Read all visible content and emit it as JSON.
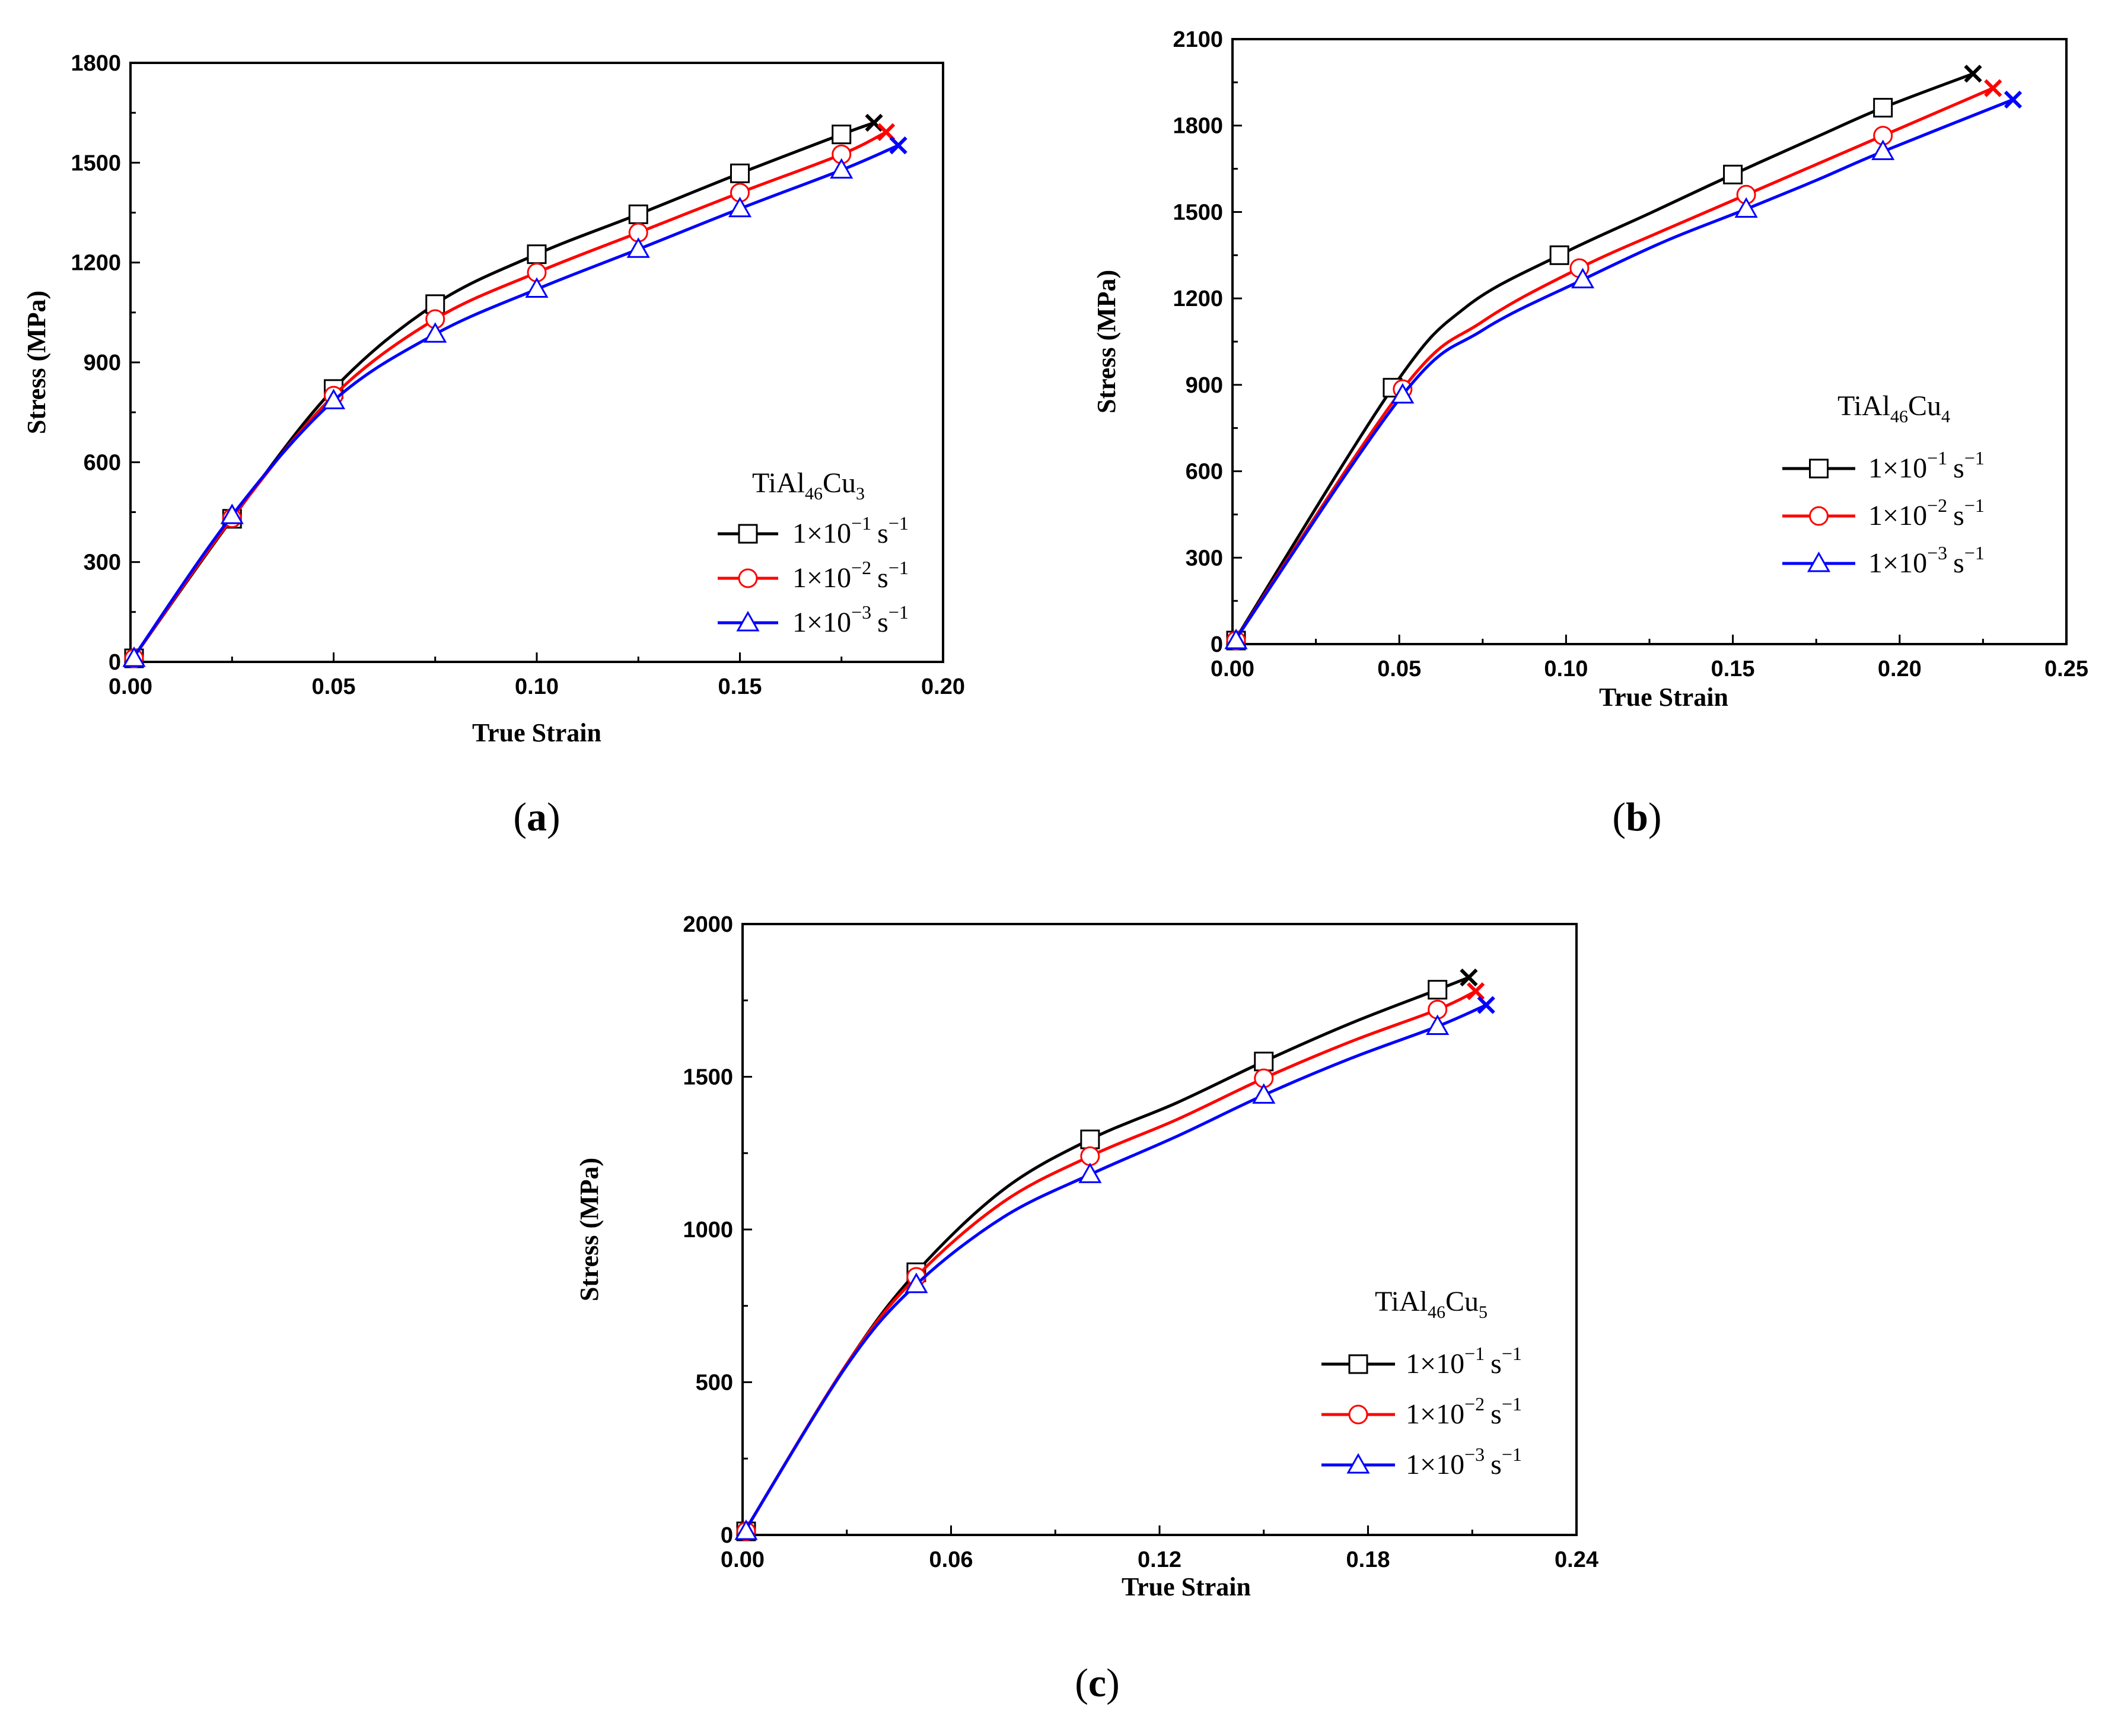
{
  "colors": {
    "s1": "#000000",
    "s2": "#ff0000",
    "s3": "#0000ff",
    "axis": "#000000"
  },
  "chart_data": [
    {
      "type": "line",
      "panel": "a",
      "caption": "a",
      "xlabel": "True Strain",
      "ylabel": "Stress (MPa)",
      "xlim": [
        0,
        0.2
      ],
      "ylim": [
        0,
        1800
      ],
      "xticks": [
        "0.00",
        "0.05",
        "0.10",
        "0.15",
        "0.20"
      ],
      "xtick_values": [
        0,
        0.05,
        0.1,
        0.15,
        0.2
      ],
      "yticks": [
        "0",
        "300",
        "600",
        "900",
        "1200",
        "1500",
        "1800"
      ],
      "ytick_values": [
        0,
        300,
        600,
        900,
        1200,
        1500,
        1800
      ],
      "legend": {
        "title_base": "TiAl",
        "title_sub1": "46",
        "title_mid": "Cu",
        "title_sub2": "3",
        "prefix": "1×10",
        "exps": [
          "−1",
          "−2",
          "−3"
        ],
        "unit": "s",
        "unit_exp": "−1"
      },
      "series": [
        {
          "name": "1×10−1 s−1",
          "color": "#000000",
          "marker": "square",
          "x": [
            0,
            0.025,
            0.05,
            0.075,
            0.1,
            0.125,
            0.15,
            0.175,
            0.183
          ],
          "y": [
            0,
            430,
            820,
            1075,
            1225,
            1345,
            1468,
            1585,
            1620
          ],
          "markers_x": [
            0.025,
            0.05,
            0.075,
            0.1,
            0.125,
            0.15,
            0.175
          ],
          "markers_y": [
            430,
            820,
            1075,
            1225,
            1345,
            1468,
            1585
          ],
          "fracture": [
            0.183,
            1620
          ]
        },
        {
          "name": "1×10−2 s−1",
          "color": "#ff0000",
          "marker": "circle",
          "x": [
            0,
            0.025,
            0.05,
            0.075,
            0.1,
            0.125,
            0.15,
            0.175,
            0.186
          ],
          "y": [
            0,
            432,
            800,
            1030,
            1170,
            1290,
            1410,
            1525,
            1592
          ],
          "markers_x": [
            0.025,
            0.05,
            0.075,
            0.1,
            0.125,
            0.15,
            0.175
          ],
          "markers_y": [
            432,
            800,
            1030,
            1170,
            1290,
            1410,
            1525
          ],
          "fracture": [
            0.186,
            1592
          ]
        },
        {
          "name": "1×10−3 s−1",
          "color": "#0000ff",
          "marker": "triangle",
          "x": [
            0,
            0.025,
            0.05,
            0.075,
            0.1,
            0.125,
            0.15,
            0.175,
            0.189
          ],
          "y": [
            0,
            440,
            785,
            985,
            1120,
            1240,
            1362,
            1478,
            1552
          ],
          "markers_x": [
            0.025,
            0.05,
            0.075,
            0.1,
            0.125,
            0.15,
            0.175
          ],
          "markers_y": [
            440,
            785,
            985,
            1120,
            1240,
            1362,
            1478
          ],
          "fracture": [
            0.189,
            1552
          ]
        }
      ]
    },
    {
      "type": "line",
      "panel": "b",
      "caption": "b",
      "xlabel": "True Strain",
      "ylabel": "Stress (MPa)",
      "xlim": [
        0,
        0.25
      ],
      "ylim": [
        0,
        2100
      ],
      "xticks": [
        "0.00",
        "0.05",
        "0.10",
        "0.15",
        "0.20",
        "0.25"
      ],
      "xtick_values": [
        0,
        0.05,
        0.1,
        0.15,
        0.2,
        0.25
      ],
      "yticks": [
        "0",
        "300",
        "600",
        "900",
        "1200",
        "1500",
        "1800",
        "2100"
      ],
      "ytick_values": [
        0,
        300,
        600,
        900,
        1200,
        1500,
        1800,
        2100
      ],
      "legend": {
        "title_base": "TiAl",
        "title_sub1": "46",
        "title_mid": "Cu",
        "title_sub2": "4",
        "prefix": "1×10",
        "exps": [
          "−1",
          "−2",
          "−3"
        ],
        "unit": "s",
        "unit_exp": "−1"
      },
      "series": [
        {
          "name": "1×10−1 s−1",
          "color": "#000000",
          "marker": "square",
          "x": [
            0,
            0.048,
            0.07,
            0.098,
            0.125,
            0.15,
            0.175,
            0.195,
            0.222
          ],
          "y": [
            0,
            890,
            1170,
            1350,
            1495,
            1630,
            1760,
            1862,
            1980
          ],
          "markers_x": [
            0.048,
            0.098,
            0.15,
            0.195
          ],
          "markers_y": [
            890,
            1350,
            1630,
            1862
          ],
          "fracture": [
            0.222,
            1980
          ]
        },
        {
          "name": "1×10−2 s−1",
          "color": "#ff0000",
          "marker": "circle",
          "x": [
            0,
            0.051,
            0.075,
            0.104,
            0.13,
            0.154,
            0.175,
            0.195,
            0.228
          ],
          "y": [
            0,
            885,
            1120,
            1305,
            1440,
            1560,
            1665,
            1765,
            1930
          ],
          "markers_x": [
            0.051,
            0.104,
            0.154,
            0.195
          ],
          "markers_y": [
            885,
            1305,
            1560,
            1765
          ],
          "fracture": [
            0.228,
            1930
          ]
        },
        {
          "name": "1×10−3 s−1",
          "color": "#0000ff",
          "marker": "triangle",
          "x": [
            0,
            0.051,
            0.075,
            0.105,
            0.13,
            0.154,
            0.175,
            0.195,
            0.234
          ],
          "y": [
            0,
            865,
            1090,
            1265,
            1400,
            1510,
            1610,
            1710,
            1890
          ],
          "markers_x": [
            0.051,
            0.105,
            0.154,
            0.195
          ],
          "markers_y": [
            865,
            1265,
            1510,
            1710
          ],
          "fracture": [
            0.234,
            1890
          ]
        }
      ]
    },
    {
      "type": "line",
      "panel": "c",
      "caption": "c",
      "xlabel": "True Strain",
      "ylabel": "Stress (MPa)",
      "xlim": [
        0,
        0.24
      ],
      "ylim": [
        0,
        2000
      ],
      "xticks": [
        "0.00",
        "0.06",
        "0.12",
        "0.18",
        "0.24"
      ],
      "xtick_values": [
        0,
        0.06,
        0.12,
        0.18,
        0.24
      ],
      "yticks": [
        "0",
        "500",
        "1000",
        "1500",
        "2000"
      ],
      "ytick_values": [
        0,
        500,
        1000,
        1500,
        2000
      ],
      "legend": {
        "title_base": "TiAl",
        "title_sub1": "46",
        "title_mid": "Cu",
        "title_sub2": "5",
        "prefix": "1×10",
        "exps": [
          "−1",
          "−2",
          "−3"
        ],
        "unit": "s",
        "unit_exp": "−1"
      },
      "series": [
        {
          "name": "1×10−1 s−1",
          "color": "#000000",
          "marker": "square",
          "x": [
            0,
            0.03,
            0.05,
            0.075,
            0.1,
            0.125,
            0.15,
            0.175,
            0.2,
            0.209
          ],
          "y": [
            0,
            560,
            860,
            1130,
            1295,
            1415,
            1550,
            1675,
            1785,
            1825
          ],
          "markers_x": [
            0.05,
            0.1,
            0.15,
            0.2
          ],
          "markers_y": [
            860,
            1295,
            1550,
            1785
          ],
          "fracture": [
            0.209,
            1825
          ]
        },
        {
          "name": "1×10−2 s−1",
          "color": "#ff0000",
          "marker": "circle",
          "x": [
            0,
            0.03,
            0.05,
            0.075,
            0.1,
            0.125,
            0.15,
            0.175,
            0.2,
            0.211
          ],
          "y": [
            0,
            560,
            845,
            1090,
            1240,
            1360,
            1495,
            1615,
            1720,
            1780
          ],
          "markers_x": [
            0.05,
            0.1,
            0.15,
            0.2
          ],
          "markers_y": [
            845,
            1240,
            1495,
            1720
          ],
          "fracture": [
            0.211,
            1780
          ]
        },
        {
          "name": "1×10−3 s−1",
          "color": "#0000ff",
          "marker": "triangle",
          "x": [
            0,
            0.03,
            0.05,
            0.075,
            0.1,
            0.125,
            0.15,
            0.175,
            0.2,
            0.214
          ],
          "y": [
            0,
            555,
            820,
            1040,
            1180,
            1305,
            1440,
            1560,
            1665,
            1735
          ],
          "markers_x": [
            0.05,
            0.1,
            0.15,
            0.2
          ],
          "markers_y": [
            820,
            1180,
            1440,
            1665
          ],
          "fracture": [
            0.214,
            1735
          ]
        }
      ]
    }
  ]
}
